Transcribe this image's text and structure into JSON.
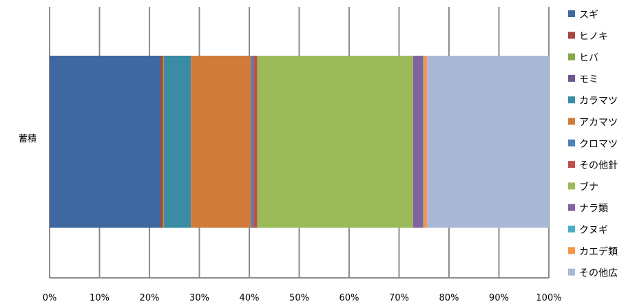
{
  "chart_data": {
    "type": "bar",
    "orientation": "horizontal",
    "stacked": "percent",
    "categories": [
      "蓄積"
    ],
    "series": [
      {
        "name": "スギ",
        "values": [
          22.2
        ],
        "color": "#4068A0"
      },
      {
        "name": "ヒノキ",
        "values": [
          0.5
        ],
        "color": "#A84340"
      },
      {
        "name": "ヒバ",
        "values": [
          0.2
        ],
        "color": "#88A84A"
      },
      {
        "name": "モミ",
        "values": [
          0.1
        ],
        "color": "#6E5890"
      },
      {
        "name": "カラマツ",
        "values": [
          5.3
        ],
        "color": "#3A8CA4"
      },
      {
        "name": "アカマツ",
        "values": [
          12.0
        ],
        "color": "#D07C38"
      },
      {
        "name": "クロマツ",
        "values": [
          0.5
        ],
        "color": "#4E80BA"
      },
      {
        "name": "その他針",
        "values": [
          0.8
        ],
        "color": "#C0504D"
      },
      {
        "name": "ブナ",
        "values": [
          31.2
        ],
        "color": "#9BBB59"
      },
      {
        "name": "ナラ類",
        "values": [
          2.0
        ],
        "color": "#8064A2"
      },
      {
        "name": "クヌギ",
        "values": [
          0.1
        ],
        "color": "#4BACC6"
      },
      {
        "name": "カエデ類",
        "values": [
          0.7
        ],
        "color": "#F79646"
      },
      {
        "name": "その他広",
        "values": [
          24.4
        ],
        "color": "#A9B8D6"
      }
    ],
    "xlim": [
      0,
      100
    ],
    "xticks": [
      "0%",
      "10%",
      "20%",
      "30%",
      "40%",
      "50%",
      "60%",
      "70%",
      "80%",
      "90%",
      "100%"
    ],
    "grid": true,
    "legend_position": "right",
    "gridline_color": "#8C8C8C"
  }
}
